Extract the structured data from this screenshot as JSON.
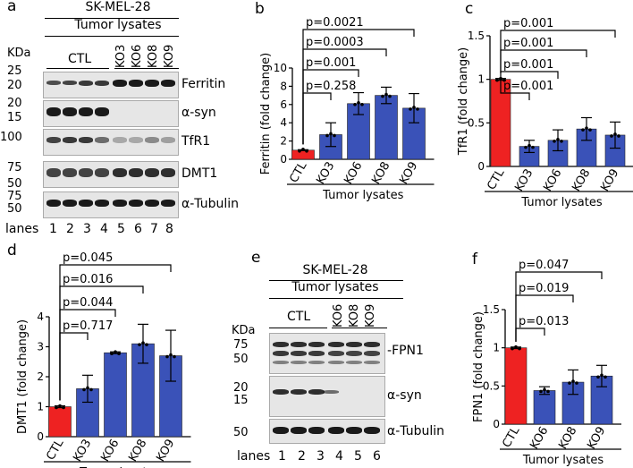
{
  "panel_a": {
    "label": "a",
    "cell_line": "SK-MEL-28",
    "subtitle": "Tumor lysates",
    "kda_label": "KDa",
    "ctl_label": "CTL",
    "ko_labels": [
      "KO3",
      "KO6",
      "KO8",
      "KO9"
    ],
    "lanes_label": "lanes",
    "lane_numbers": [
      "1",
      "2",
      "3",
      "4",
      "5",
      "6",
      "7",
      "8"
    ],
    "markers": [
      "25",
      "20",
      "20",
      "15",
      "100",
      "75",
      "75",
      "50",
      "75",
      "50"
    ],
    "blots": [
      "Ferritin",
      "α-syn",
      "TfR1",
      "DMT1",
      "α-Tubulin"
    ]
  },
  "panel_e": {
    "label": "e",
    "cell_line": "SK-MEL-28",
    "subtitle": "Tumor lysates",
    "kda_label": "KDa",
    "ctl_label": "CTL",
    "ko_labels": [
      "KO6",
      "KO8",
      "KO9"
    ],
    "lanes_label": "lanes",
    "lane_numbers": [
      "1",
      "2",
      "3",
      "4",
      "5",
      "6"
    ],
    "markers": [
      "75",
      "50",
      "20",
      "15",
      "50"
    ],
    "blots": [
      "FPN1",
      "α-syn",
      "α-Tubulin"
    ]
  },
  "chart_data": [
    {
      "panel": "b",
      "type": "bar",
      "categories": [
        "CTL",
        "KO3",
        "KO6",
        "KO8",
        "KO9"
      ],
      "values": [
        1.0,
        2.7,
        6.1,
        7.0,
        5.6
      ],
      "errors": [
        0.05,
        1.3,
        1.2,
        0.9,
        1.6
      ],
      "colors": [
        "#ee2222",
        "#3a52b8",
        "#3a52b8",
        "#3a52b8",
        "#3a52b8"
      ],
      "ylabel": "Ferritin (fold change)",
      "xlabel": "Tumor lysates",
      "ylim": [
        0,
        10
      ],
      "yticks": [
        "0",
        "2",
        "4",
        "6",
        "8",
        "10"
      ],
      "comparisons": [
        "p=0.258",
        "p=0.001",
        "p=0.0003",
        "p=0.0021"
      ]
    },
    {
      "panel": "c",
      "type": "bar",
      "categories": [
        "CTL",
        "KO3",
        "KO6",
        "KO8",
        "KO9"
      ],
      "values": [
        1.0,
        0.23,
        0.3,
        0.43,
        0.36
      ],
      "errors": [
        0.01,
        0.07,
        0.12,
        0.13,
        0.15
      ],
      "colors": [
        "#ee2222",
        "#3a52b8",
        "#3a52b8",
        "#3a52b8",
        "#3a52b8"
      ],
      "ylabel": "TfR1 (fold change)",
      "xlabel": "Tumor lysates",
      "ylim": [
        0,
        1.5
      ],
      "yticks": [
        "0",
        "0.5",
        "1",
        "1.5"
      ],
      "comparisons": [
        "p=0.001",
        "p=0.001",
        "p=0.001",
        "p=0.001"
      ]
    },
    {
      "panel": "d",
      "type": "bar",
      "categories": [
        "CTL",
        "KO3",
        "KO6",
        "KO8",
        "KO9"
      ],
      "values": [
        1.0,
        1.6,
        2.8,
        3.1,
        2.7
      ],
      "errors": [
        0.03,
        0.45,
        0.03,
        0.65,
        0.85
      ],
      "colors": [
        "#ee2222",
        "#3a52b8",
        "#3a52b8",
        "#3a52b8",
        "#3a52b8"
      ],
      "ylabel": "DMT1 (fold change)",
      "xlabel": "Tumor lysates",
      "ylim": [
        0,
        4
      ],
      "yticks": [
        "0",
        "1",
        "2",
        "3",
        "4"
      ],
      "comparisons": [
        "p=0.717",
        "p=0.044",
        "p=0.016",
        "p=0.045"
      ]
    },
    {
      "panel": "f",
      "type": "bar",
      "categories": [
        "CTL",
        "KO6",
        "KO8",
        "KO9"
      ],
      "values": [
        1.0,
        0.44,
        0.55,
        0.63
      ],
      "errors": [
        0.01,
        0.05,
        0.16,
        0.14
      ],
      "colors": [
        "#ee2222",
        "#3a52b8",
        "#3a52b8",
        "#3a52b8"
      ],
      "ylabel": "FPN1 (fold change)",
      "xlabel": "Tumor lysates",
      "ylim": [
        0,
        1.5
      ],
      "yticks": [
        "0",
        "0.5",
        "1",
        "1.5"
      ],
      "comparisons": [
        "p=0.013",
        "p=0.019",
        "p=0.047"
      ]
    }
  ]
}
